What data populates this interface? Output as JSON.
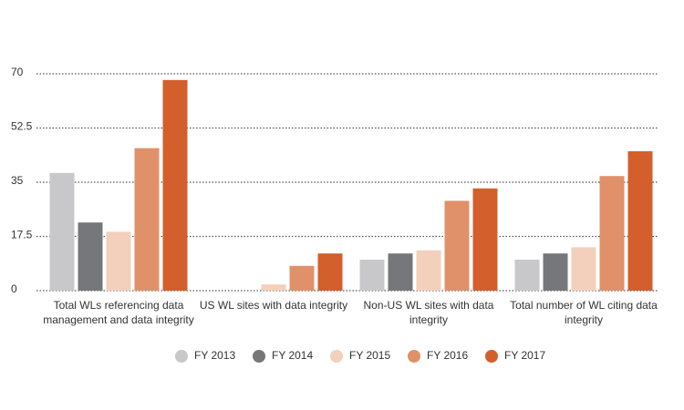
{
  "chart_data": {
    "type": "bar",
    "categories": [
      "Total WLs referencing data management and data integrity",
      "US WL sites with data integrity",
      "Non-US WL sites with data integrity",
      "Total number of WL citing data integrity"
    ],
    "series": [
      {
        "name": "FY 2013",
        "color": "#c8c8ca",
        "values": [
          38,
          0,
          10,
          10
        ]
      },
      {
        "name": "FY 2014",
        "color": "#76777b",
        "values": [
          22,
          0,
          12,
          12
        ]
      },
      {
        "name": "FY 2015",
        "color": "#f2d0bb",
        "values": [
          19,
          2,
          13,
          14
        ]
      },
      {
        "name": "FY 2016",
        "color": "#e0916a",
        "values": [
          46,
          8,
          29,
          37
        ]
      },
      {
        "name": "FY 2017",
        "color": "#d35f2d",
        "values": [
          68,
          12,
          33,
          45
        ]
      }
    ],
    "ylim": [
      0,
      70
    ],
    "yticks": [
      0,
      17.5,
      35,
      52.5,
      70
    ],
    "grid": true,
    "legend": "bottom"
  }
}
